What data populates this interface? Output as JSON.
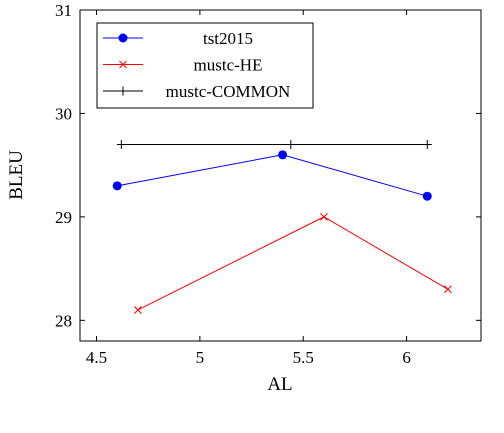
{
  "chart_data": {
    "type": "line",
    "xlabel": "AL",
    "ylabel": "BLEU",
    "xlim": [
      4.42,
      6.36
    ],
    "xticks": [
      4.5,
      5,
      5.5,
      6
    ],
    "ylim": [
      27.8,
      31
    ],
    "yticks": [
      28,
      29,
      30,
      31
    ],
    "legend": "upper left",
    "series": [
      {
        "name": "tst2015",
        "color": "#0000ff",
        "marker": "circle",
        "x": [
          4.6,
          5.4,
          6.1
        ],
        "values": [
          29.3,
          29.6,
          29.2
        ]
      },
      {
        "name": "mustc-HE",
        "color": "#ff0000",
        "marker": "x",
        "x": [
          4.7,
          5.6,
          6.2
        ],
        "values": [
          28.1,
          29.0,
          28.3
        ]
      },
      {
        "name": "mustc-COMMON",
        "color": "#000000",
        "marker": "plus",
        "x": [
          4.62,
          5.44,
          6.1
        ],
        "values": [
          29.7,
          29.7,
          29.7
        ]
      }
    ]
  }
}
